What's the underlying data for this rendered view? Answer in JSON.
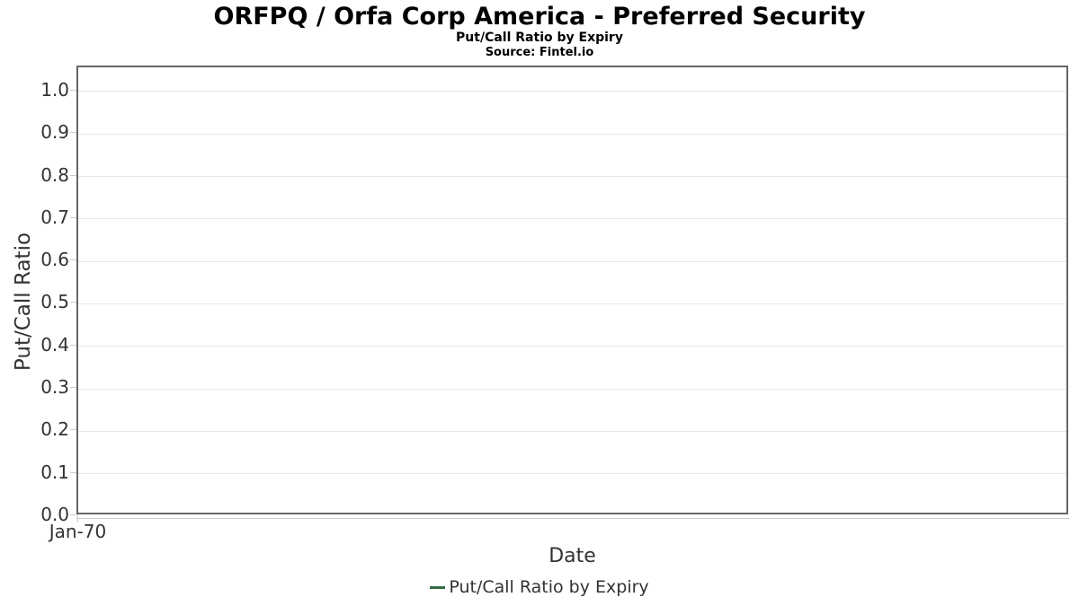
{
  "chart_data": {
    "type": "line",
    "title": "ORFPQ / Orfa Corp America - Preferred Security",
    "subtitle": "Put/Call Ratio by Expiry",
    "source": "Source: Fintel.io",
    "xlabel": "Date",
    "ylabel": "Put/Call Ratio",
    "x_tick_labels": [
      "Jan-70"
    ],
    "y_ticks": [
      "0.0",
      "0.1",
      "0.2",
      "0.3",
      "0.4",
      "0.5",
      "0.6",
      "0.7",
      "0.8",
      "0.9",
      "1.0"
    ],
    "ylim": [
      0.0,
      1.057
    ],
    "grid": true,
    "legend_position": "bottom",
    "series": [
      {
        "name": "Put/Call Ratio by Expiry",
        "color": "#336b45",
        "x": [],
        "values": []
      }
    ],
    "colors": {
      "plot_border": "#666666",
      "gridline": "#e6e6e6",
      "axis_line": "#cccccc",
      "tick_label": "#333333",
      "text": "#000000",
      "series_green": "#336b45"
    }
  }
}
